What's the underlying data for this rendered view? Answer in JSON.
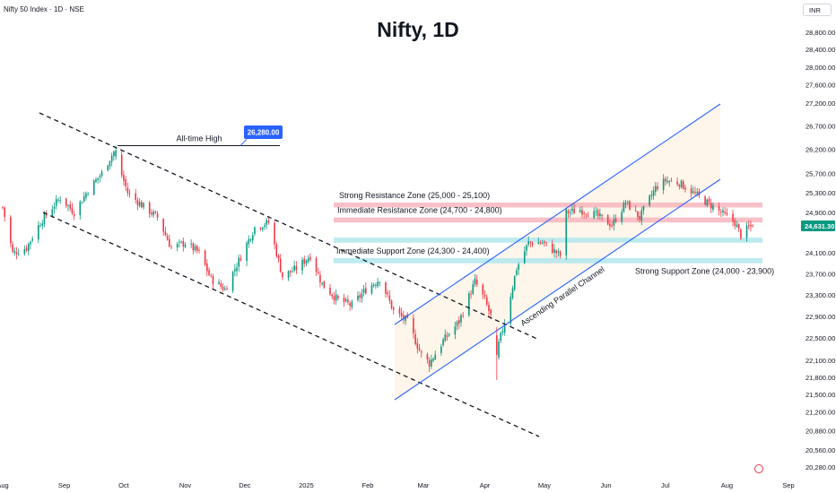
{
  "header": {
    "symbol": "Nifty 50 Index · 1D · NSE",
    "title": "Nifty, 1D",
    "currency": "INR"
  },
  "colors": {
    "up": "#089981",
    "down": "#f23645",
    "channel": "#2962ff",
    "resistance_zone": "#f7b5bd",
    "support_zone": "#b2e6ee",
    "price_badge": "#089981",
    "ath_badge": "#2962ff"
  },
  "chart_data": {
    "type": "candlestick",
    "title": "Nifty, 1D",
    "ylim": [
      20280,
      29200
    ],
    "y_scale": "log",
    "y_ticks": [
      "28,800.00",
      "28,400.00",
      "28,000.00",
      "27,600.00",
      "27,200.00",
      "26,700.00",
      "26,200.00",
      "25,700.00",
      "25,300.00",
      "24,900.00",
      "24,100.00",
      "23,700.00",
      "23,300.00",
      "22,900.00",
      "22,500.00",
      "22,100.00",
      "21,800.00",
      "21,500.00",
      "21,200.00",
      "20,880.00",
      "20,560.00",
      "20,280.00"
    ],
    "x_ticks": [
      "Aug",
      "Sep",
      "Oct",
      "Nov",
      "Dec",
      "2025",
      "Feb",
      "Mar",
      "Apr",
      "May",
      "Jun",
      "Jul",
      "Aug",
      "Sep"
    ],
    "x_tick_days": [
      0,
      31,
      61,
      92,
      122,
      153,
      184,
      212,
      243,
      273,
      304,
      334,
      365,
      396
    ],
    "last_price": "24,631.30",
    "last_value": 24631.3,
    "ath_label": "26,280.00",
    "ath_value": 26280,
    "keyframes": [
      [
        "2024-08-01",
        25000
      ],
      [
        "2024-08-06",
        24100
      ],
      [
        "2024-08-13",
        24200
      ],
      [
        "2024-08-20",
        24700
      ],
      [
        "2024-08-30",
        25200
      ],
      [
        "2024-09-06",
        24900
      ],
      [
        "2024-09-13",
        25350
      ],
      [
        "2024-09-20",
        25700
      ],
      [
        "2024-09-26",
        26150
      ],
      [
        "2024-10-03",
        25300
      ],
      [
        "2024-10-10",
        25050
      ],
      [
        "2024-10-18",
        24800
      ],
      [
        "2024-10-25",
        24200
      ],
      [
        "2024-11-01",
        24300
      ],
      [
        "2024-11-08",
        24100
      ],
      [
        "2024-11-14",
        23600
      ],
      [
        "2024-11-21",
        23400
      ],
      [
        "2024-11-28",
        23950
      ],
      [
        "2024-12-06",
        24600
      ],
      [
        "2024-12-13",
        24700
      ],
      [
        "2024-12-20",
        23650
      ],
      [
        "2024-12-27",
        23800
      ],
      [
        "2025-01-03",
        24050
      ],
      [
        "2025-01-09",
        23500
      ],
      [
        "2025-01-17",
        23200
      ],
      [
        "2025-01-24",
        23100
      ],
      [
        "2025-01-31",
        23400
      ],
      [
        "2025-02-07",
        23600
      ],
      [
        "2025-02-14",
        23000
      ],
      [
        "2025-02-21",
        22800
      ],
      [
        "2025-02-28",
        22200
      ],
      [
        "2025-03-04",
        22050
      ],
      [
        "2025-03-11",
        22450
      ],
      [
        "2025-03-19",
        22800
      ],
      [
        "2025-03-27",
        23550
      ],
      [
        "2025-04-01",
        23200
      ],
      [
        "2025-04-04",
        22900
      ],
      [
        "2025-04-07",
        22250
      ],
      [
        "2025-04-11",
        22800
      ],
      [
        "2025-04-17",
        23800
      ],
      [
        "2025-04-23",
        24300
      ],
      [
        "2025-04-30",
        24300
      ],
      [
        "2025-05-09",
        24050
      ],
      [
        "2025-05-12",
        24900
      ],
      [
        "2025-05-19",
        24950
      ],
      [
        "2025-05-27",
        24850
      ],
      [
        "2025-06-04",
        24650
      ],
      [
        "2025-06-11",
        25100
      ],
      [
        "2025-06-18",
        24800
      ],
      [
        "2025-06-26",
        25400
      ],
      [
        "2025-07-01",
        25550
      ],
      [
        "2025-07-08",
        25500
      ],
      [
        "2025-07-15",
        25300
      ],
      [
        "2025-07-22",
        25100
      ],
      [
        "2025-07-29",
        24900
      ],
      [
        "2025-08-05",
        24700
      ],
      [
        "2025-08-08",
        24450
      ],
      [
        "2025-08-12",
        24600
      ],
      [
        "2025-08-14",
        24631.3
      ]
    ],
    "zones": [
      {
        "label": "Strong Resistance Zone (25,000 - 25,100)",
        "low": 25000,
        "high": 25100,
        "kind": "resistance"
      },
      {
        "label": "Immediate Resistance Zone (24,700 - 24,800)",
        "low": 24700,
        "high": 24800,
        "kind": "resistance"
      },
      {
        "label": "Immediate Support Zone (24,300 - 24,400)",
        "low": 24300,
        "high": 24400,
        "kind": "support"
      },
      {
        "label": "Strong Support Zone (24,000 - 23,900)",
        "low": 23900,
        "high": 24000,
        "kind": "support"
      }
    ],
    "annotations": {
      "ath_label": "All-time High",
      "channel_label": "Ascending Parallel Channel"
    }
  }
}
